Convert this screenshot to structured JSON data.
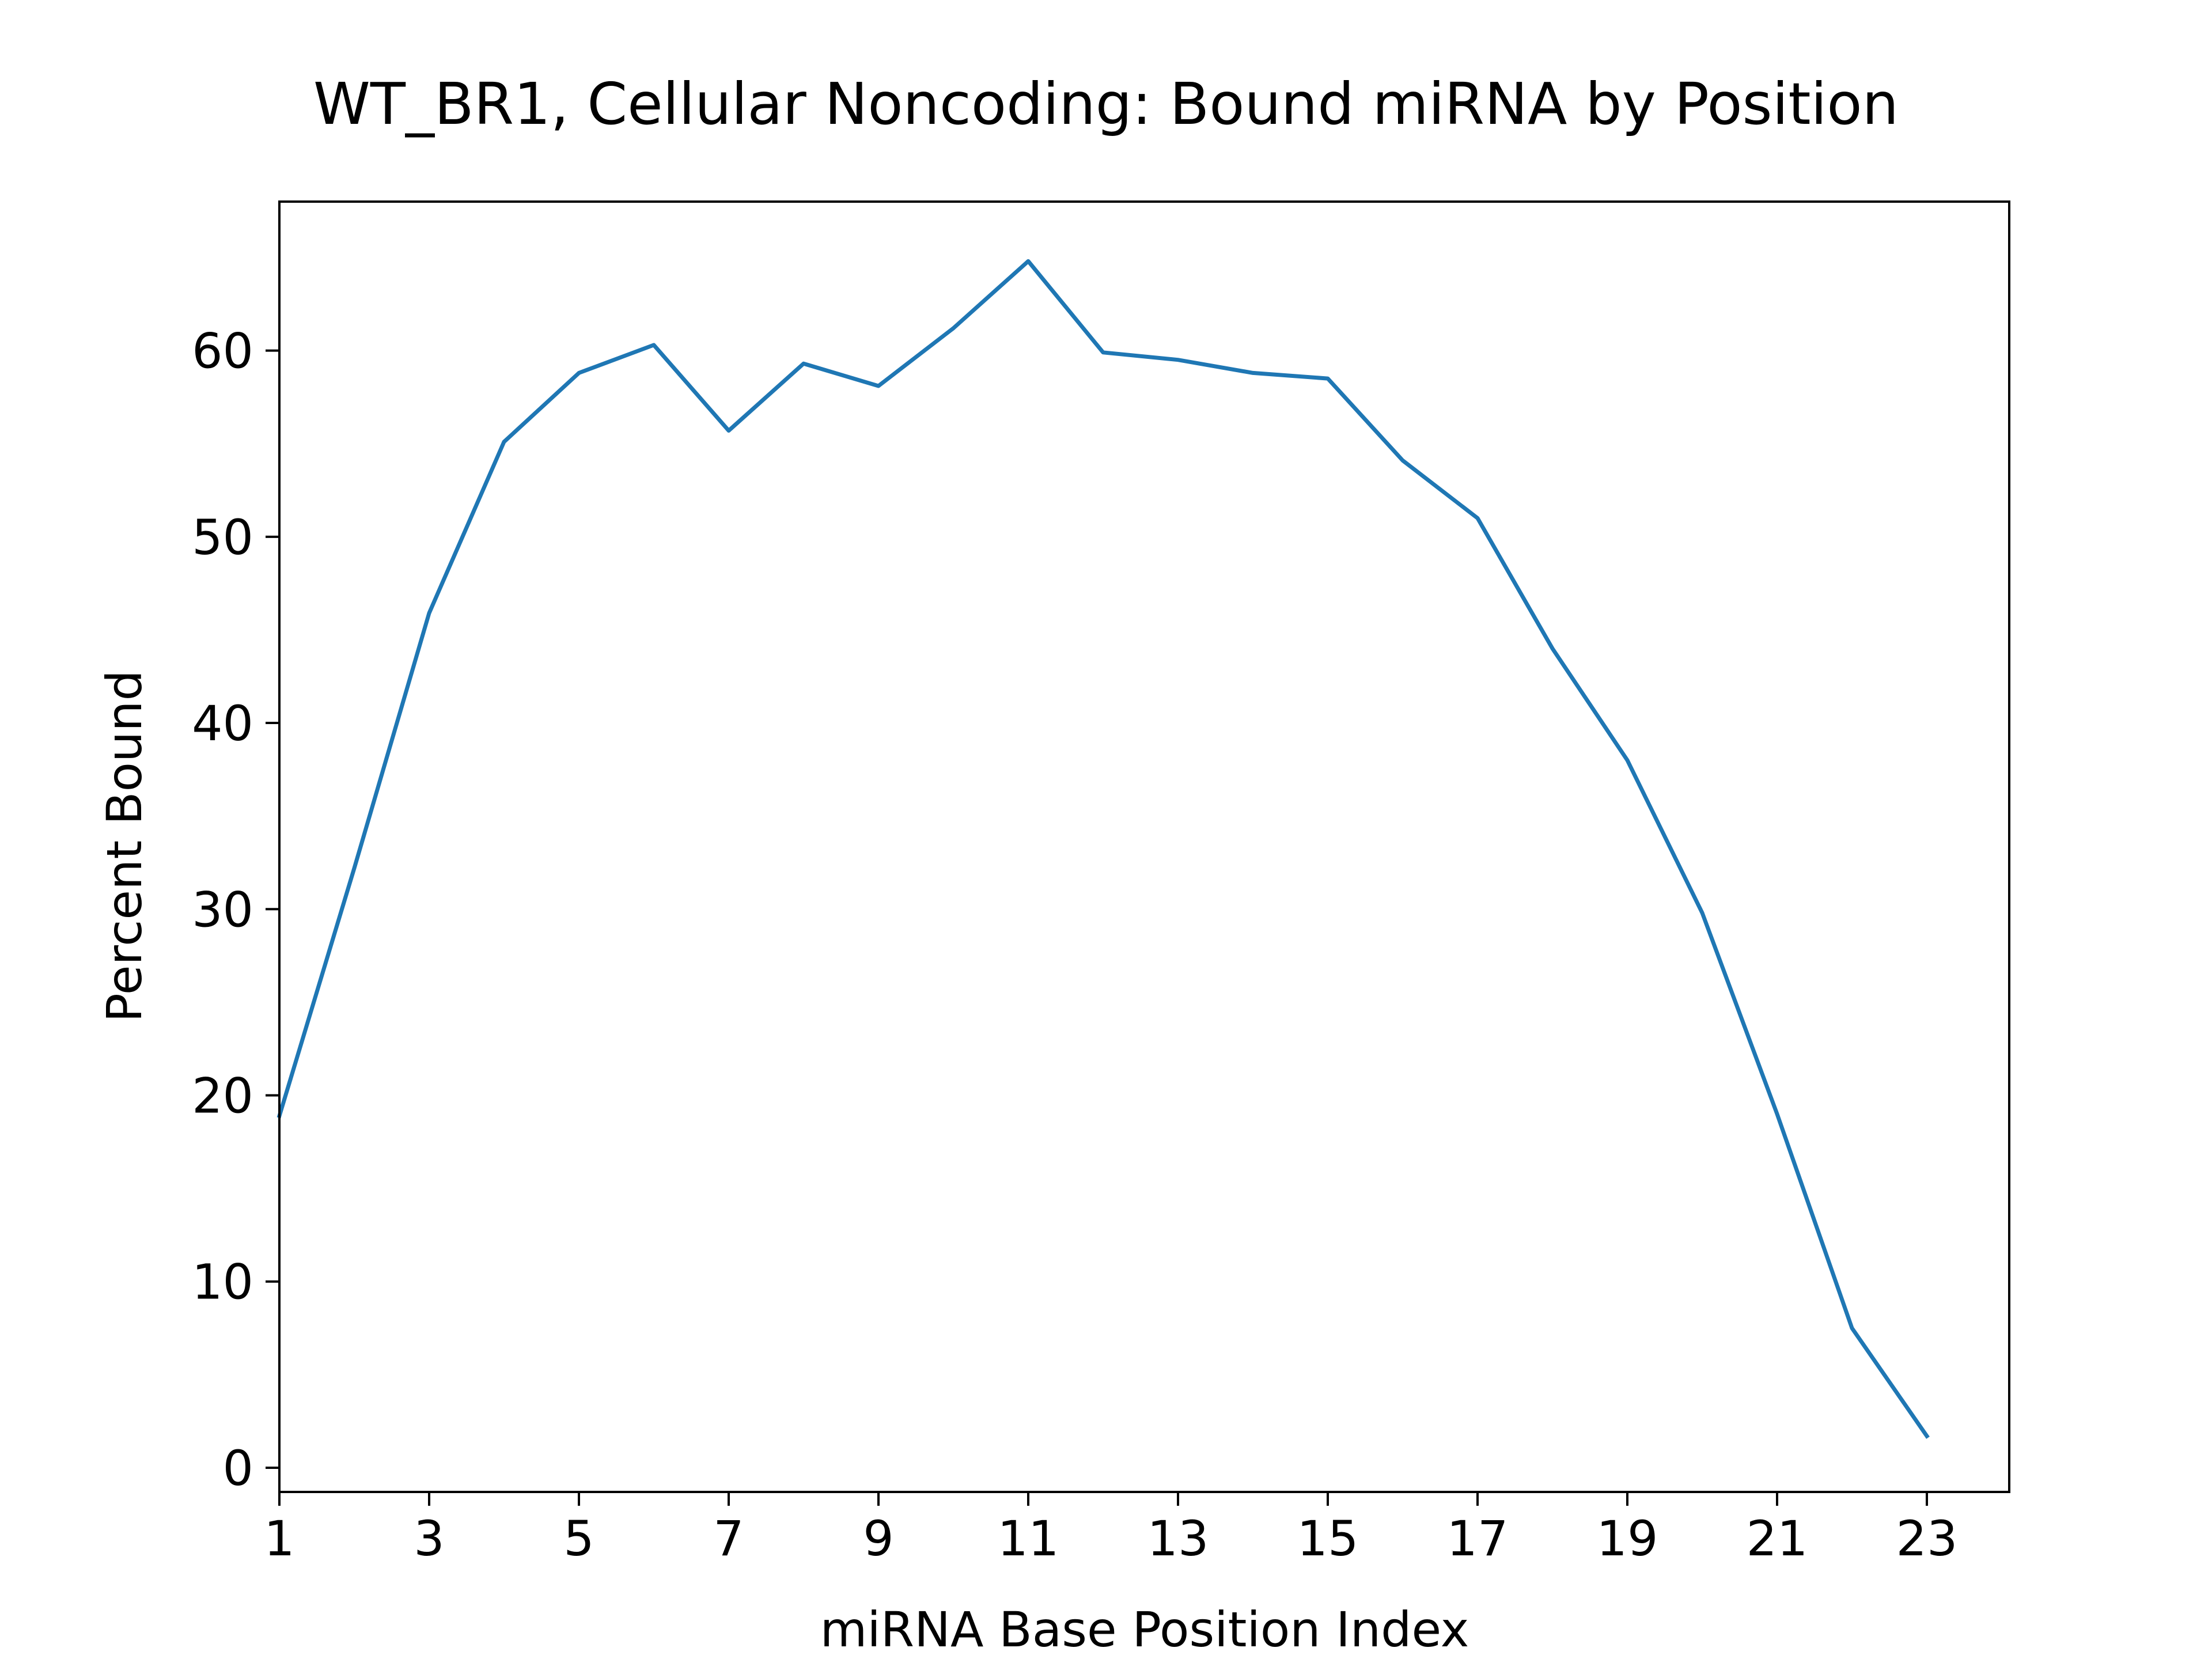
{
  "chart_data": {
    "type": "line",
    "title": "WT_BR1, Cellular Noncoding: Bound miRNA by Position",
    "xlabel": "miRNA Base Position Index",
    "ylabel": "Percent Bound",
    "xlim": [
      1,
      24.1
    ],
    "ylim": [
      -1.3,
      68
    ],
    "xticks": [
      1,
      3,
      5,
      7,
      9,
      11,
      13,
      15,
      17,
      19,
      21,
      23
    ],
    "yticks": [
      0,
      10,
      20,
      30,
      40,
      50,
      60
    ],
    "grid": false,
    "legend": "none",
    "series": [
      {
        "color": "#1f77b4",
        "x": [
          1,
          2,
          3,
          4,
          5,
          6,
          7,
          8,
          9,
          10,
          11,
          12,
          13,
          14,
          15,
          16,
          17,
          18,
          19,
          20,
          21,
          22,
          23
        ],
        "y": [
          18.9,
          32.2,
          45.9,
          55.1,
          58.8,
          60.3,
          55.7,
          59.3,
          58.1,
          61.2,
          64.8,
          59.9,
          59.5,
          58.8,
          58.5,
          54.1,
          51.0,
          44.0,
          38.0,
          29.8,
          19.0,
          7.5,
          1.7
        ]
      }
    ]
  }
}
